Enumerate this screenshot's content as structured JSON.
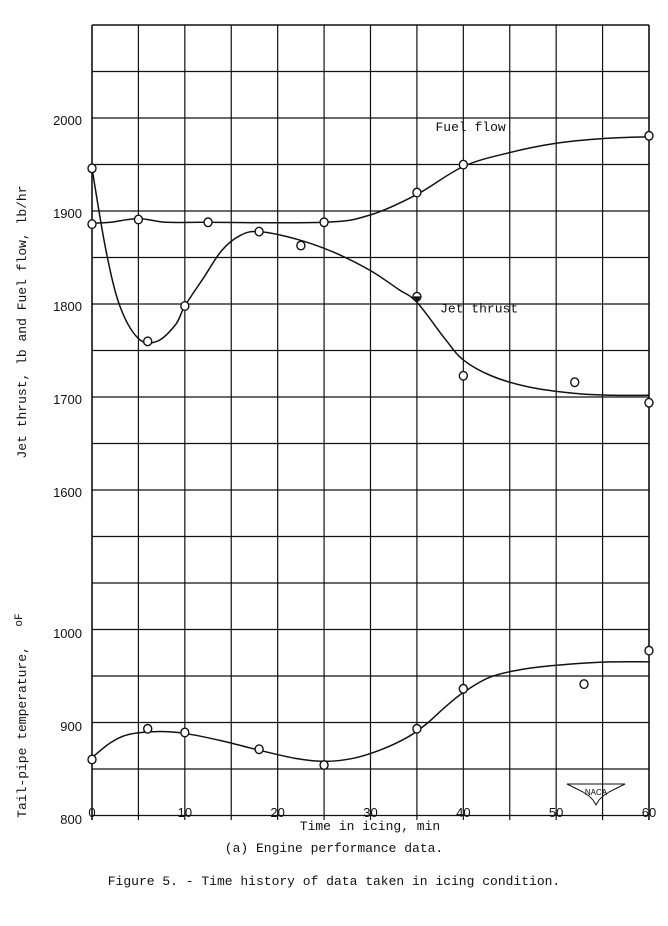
{
  "chart_data": {
    "type": "line",
    "title": "Figure 5. - Time history of data taken in icing condition.",
    "subtitle": "(a) Engine performance data.",
    "xlabel": "Time in icing, min",
    "xlim": [
      0,
      60
    ],
    "x_ticks": [
      0,
      10,
      20,
      30,
      40,
      50,
      60
    ],
    "x_minor_step": 5,
    "grid": true,
    "panels": [
      {
        "name": "upper",
        "ylabel": "Jet thrust, lb  and  Fuel flow, lb/hr",
        "ylim": [
          1550,
          2100
        ],
        "y_ticks": [
          1600,
          1700,
          1800,
          1900,
          2000
        ],
        "y_minor_step": 50,
        "series": [
          {
            "name": "Fuel flow",
            "label_pos": {
              "x": 37,
              "y": 1988
            },
            "points": [
              [
                0,
                1888
              ],
              [
                5,
                1893
              ],
              [
                12.5,
                1890
              ],
              [
                25,
                1890
              ],
              [
                35,
                1922
              ],
              [
                40,
                1952
              ],
              [
                60,
                1983
              ]
            ],
            "curve": [
              [
                0,
                1889
              ],
              [
                2,
                1890
              ],
              [
                5,
                1894
              ],
              [
                8,
                1890
              ],
              [
                12,
                1890
              ],
              [
                25,
                1890
              ],
              [
                30,
                1898
              ],
              [
                35,
                1920
              ],
              [
                40,
                1950
              ],
              [
                45,
                1965
              ],
              [
                50,
                1975
              ],
              [
                55,
                1980
              ],
              [
                60,
                1982
              ]
            ]
          },
          {
            "name": "Jet thrust",
            "label_pos": {
              "x": 37.5,
              "y": 1793
            },
            "points": [
              [
                0,
                1948
              ],
              [
                6,
                1762
              ],
              [
                10,
                1800
              ],
              [
                18,
                1880
              ],
              [
                22.5,
                1865
              ],
              [
                35,
                1810
              ],
              [
                40,
                1725
              ],
              [
                52,
                1718
              ],
              [
                60,
                1696
              ]
            ],
            "curve": [
              [
                0,
                1948
              ],
              [
                1.5,
                1860
              ],
              [
                3,
                1800
              ],
              [
                5,
                1765
              ],
              [
                7,
                1762
              ],
              [
                9,
                1780
              ],
              [
                10,
                1800
              ],
              [
                12,
                1830
              ],
              [
                14,
                1860
              ],
              [
                16,
                1876
              ],
              [
                18,
                1880
              ],
              [
                22,
                1872
              ],
              [
                26,
                1858
              ],
              [
                30,
                1838
              ],
              [
                33,
                1818
              ],
              [
                35,
                1804
              ],
              [
                38,
                1765
              ],
              [
                40,
                1742
              ],
              [
                43,
                1725
              ],
              [
                47,
                1713
              ],
              [
                52,
                1706
              ],
              [
                56,
                1704
              ],
              [
                60,
                1704
              ]
            ]
          }
        ]
      },
      {
        "name": "lower",
        "ylabel": "Tail-pipe temperature, °F",
        "ylim": [
          800,
          1000
        ],
        "y_ticks": [
          800,
          900,
          1000
        ],
        "y_minor_step": 50,
        "series": [
          {
            "name": "Tail-pipe temperature",
            "points": [
              [
                0,
                864
              ],
              [
                6,
                897
              ],
              [
                10,
                893
              ],
              [
                18,
                875
              ],
              [
                25,
                858
              ],
              [
                35,
                897
              ],
              [
                40,
                940
              ],
              [
                53,
                945
              ],
              [
                60,
                981
              ]
            ],
            "curve": [
              [
                0,
                866
              ],
              [
                2,
                882
              ],
              [
                4,
                891
              ],
              [
                7,
                894
              ],
              [
                10,
                892
              ],
              [
                14,
                884
              ],
              [
                18,
                874
              ],
              [
                22,
                865
              ],
              [
                25,
                862
              ],
              [
                28,
                865
              ],
              [
                31,
                874
              ],
              [
                34,
                888
              ],
              [
                36,
                902
              ],
              [
                38,
                920
              ],
              [
                40,
                936
              ],
              [
                43,
                953
              ],
              [
                47,
                962
              ],
              [
                52,
                967
              ],
              [
                56,
                969
              ],
              [
                60,
                969
              ]
            ]
          }
        ]
      }
    ],
    "annotations": [
      "NACA"
    ]
  },
  "axes": {
    "upper_ylabel": "Jet thrust, lb  and  Fuel flow, lb/hr",
    "lower_ylabel": "Tail-pipe temperature,",
    "lower_ylabel_unit": "oF",
    "xlabel": "Time in icing, min"
  },
  "captions": {
    "sub": "(a) Engine performance data.",
    "figure": "Figure 5. - Time history of data taken in icing condition."
  },
  "logo": {
    "text": "NACA"
  }
}
